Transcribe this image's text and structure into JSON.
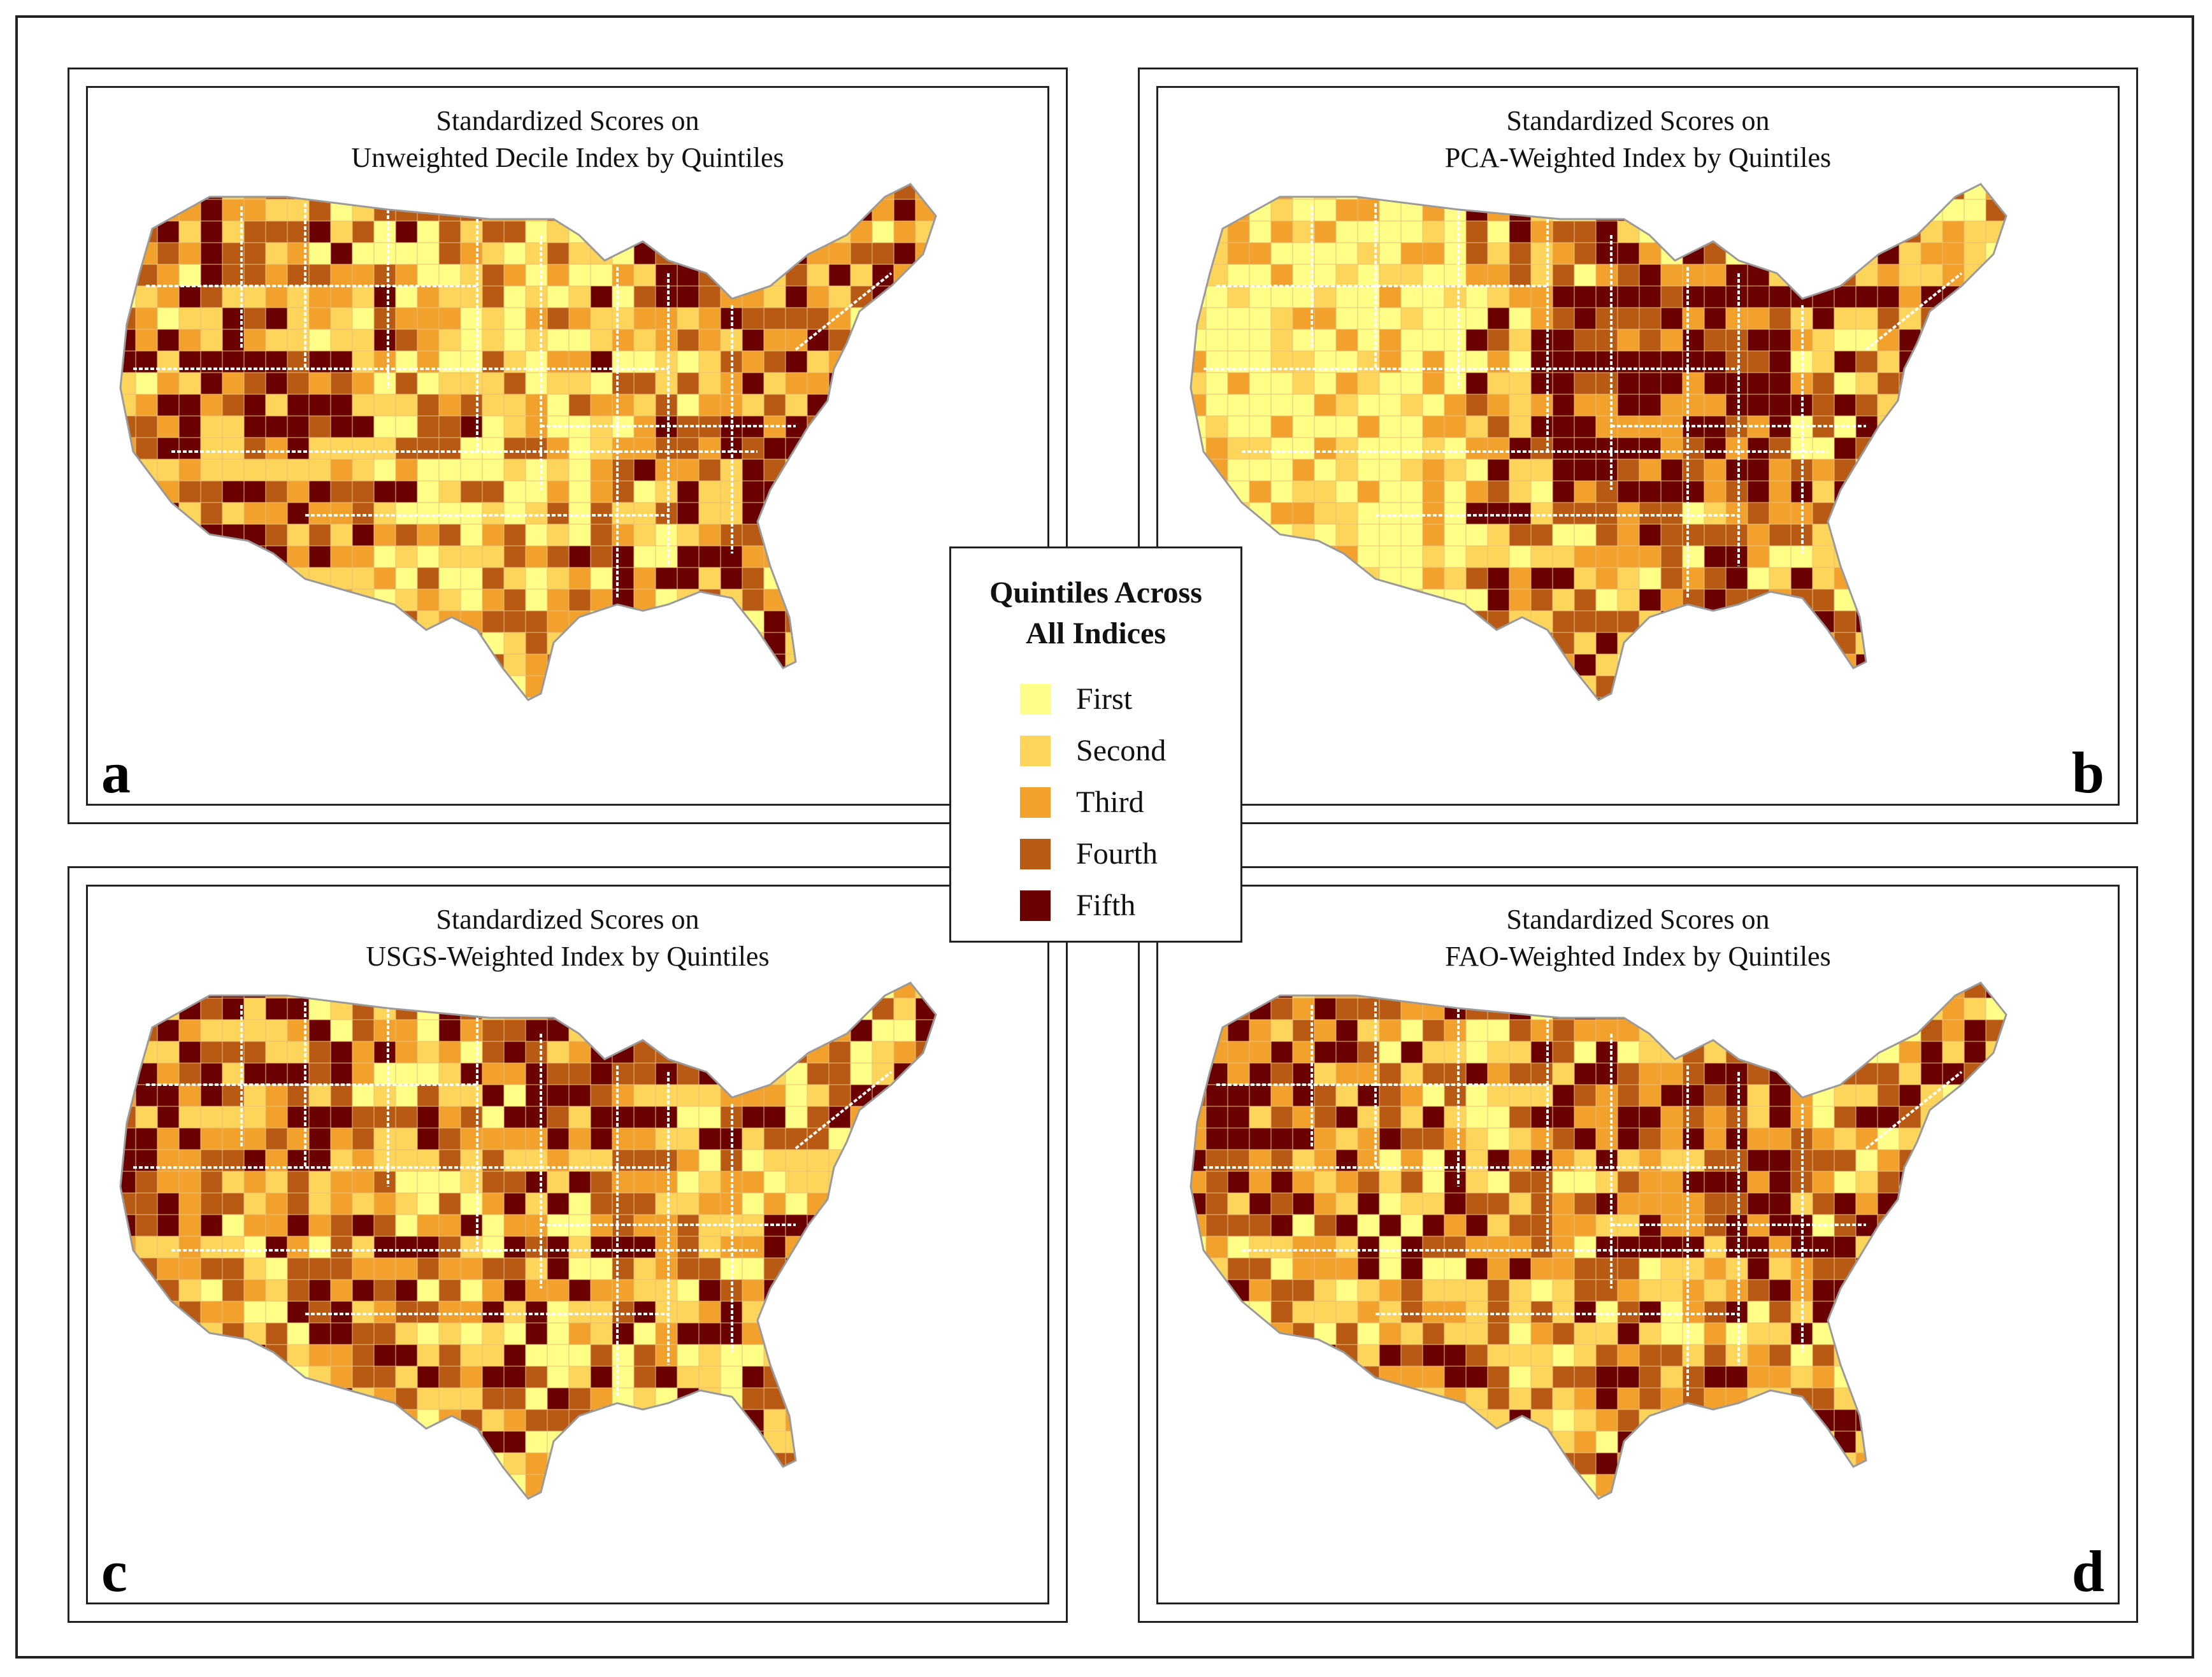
{
  "legend": {
    "title_line1": "Quintiles Across",
    "title_line2": "All Indices",
    "items": [
      {
        "label": "First",
        "color": "#ffff88"
      },
      {
        "label": "Second",
        "color": "#fdd55a"
      },
      {
        "label": "Third",
        "color": "#f2a12d"
      },
      {
        "label": "Fourth",
        "color": "#b85a14"
      },
      {
        "label": "Fifth",
        "color": "#6b0000"
      }
    ]
  },
  "panels": [
    {
      "letter": "a",
      "title_line1": "Standardized Scores on",
      "title_line2": "Unweighted Decile Index by Quintiles"
    },
    {
      "letter": "b",
      "title_line1": "Standardized Scores on",
      "title_line2": "PCA-Weighted Index by Quintiles"
    },
    {
      "letter": "c",
      "title_line1": "Standardized Scores on",
      "title_line2": "USGS-Weighted Index by Quintiles"
    },
    {
      "letter": "d",
      "title_line1": "Standardized Scores on",
      "title_line2": "FAO-Weighted Index by Quintiles"
    }
  ],
  "colors": {
    "border": "#222222",
    "state_line": "#ffffff",
    "county_line": "#e7c07a"
  }
}
